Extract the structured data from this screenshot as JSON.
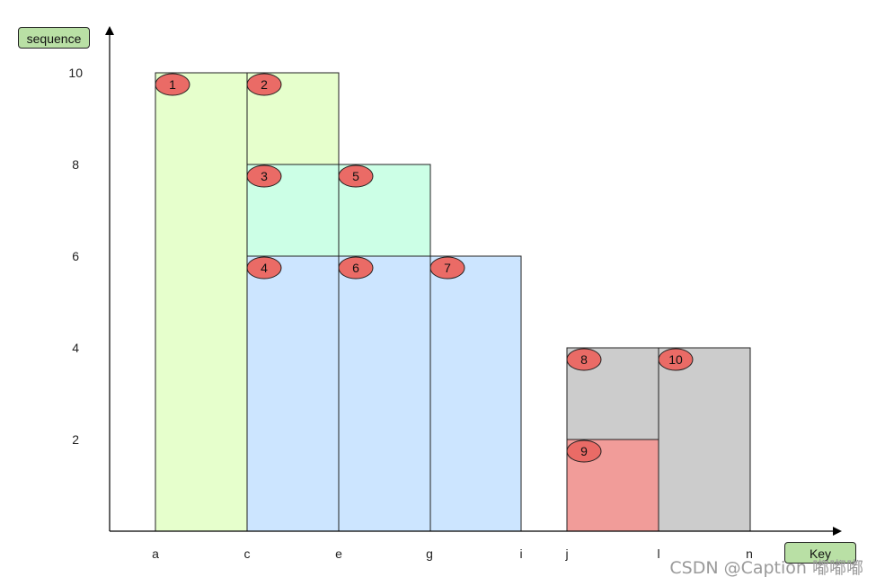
{
  "axes": {
    "y_label": "sequence",
    "x_label": "Key",
    "y_ticks": [
      "2",
      "4",
      "6",
      "8",
      "10"
    ],
    "x_ticks": [
      "a",
      "c",
      "e",
      "g",
      "i",
      "j",
      "l",
      "n"
    ]
  },
  "colors": {
    "light_green": "#e6ffcc",
    "mint": "#ccffe6",
    "light_blue": "#cce5ff",
    "gray": "#cccccc",
    "pink": "#f19c99",
    "badge_fill": "#ea6b66",
    "axis_label_fill": "#b9e0a5"
  },
  "badges": [
    "1",
    "2",
    "3",
    "5",
    "4",
    "6",
    "7",
    "8",
    "10",
    "9"
  ],
  "watermark": "CSDN @Caption 嘟嘟嘟"
}
